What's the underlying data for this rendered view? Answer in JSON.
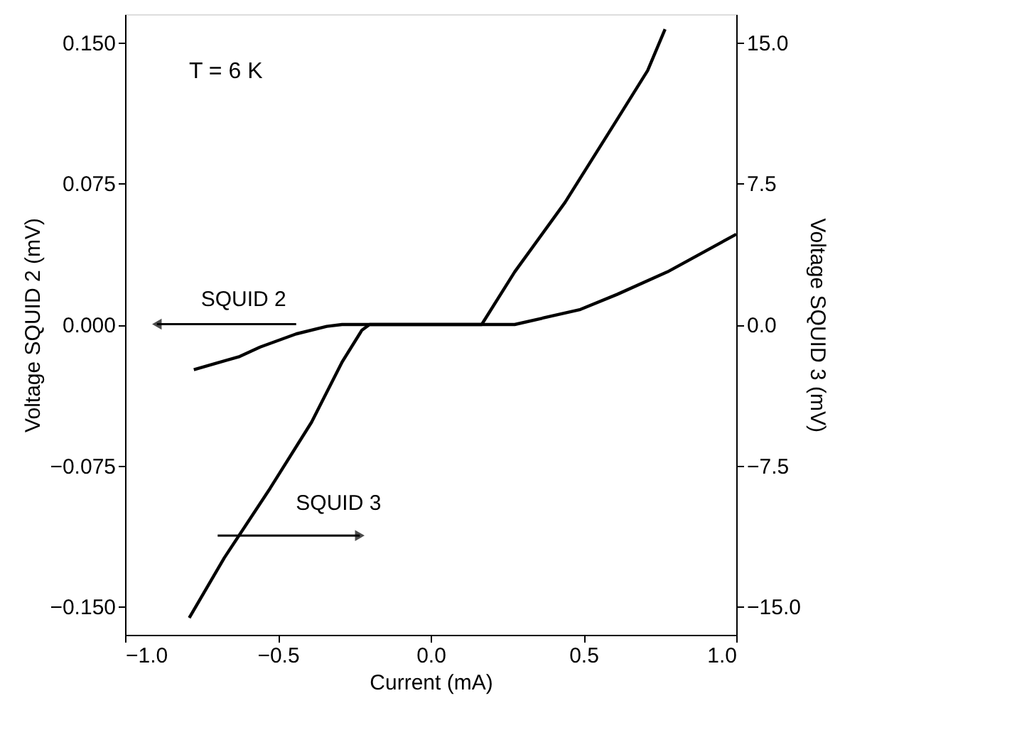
{
  "chart_data": {
    "type": "line",
    "xlabel": "Current (mA)",
    "ylabel": "Voltage SQUID 2 (mV)",
    "y2label": "Voltage SQUID 3 (mV)",
    "annotations": [
      "T = 6 K"
    ],
    "xlim": [
      -1.0,
      1.0
    ],
    "xticks": [
      {
        "value": -1,
        "label": "−1.0"
      },
      {
        "value": -0.5,
        "label": "−0.5"
      },
      {
        "value": 0,
        "label": "0.0"
      },
      {
        "value": 0.5,
        "label": "0.5"
      },
      {
        "value": 1,
        "label": "1.0"
      }
    ],
    "ylim": [
      -0.165,
      0.165
    ],
    "yticks": [
      {
        "value": -0.15,
        "label": "−0.150"
      },
      {
        "value": -0.075,
        "label": "−0.075"
      },
      {
        "value": 0,
        "label": "0.000"
      },
      {
        "value": 0.075,
        "label": "0.075"
      },
      {
        "value": 0.15,
        "label": "0.150"
      }
    ],
    "y2lim": [
      -16.5,
      16.5
    ],
    "y2ticks": [
      {
        "value": -15,
        "label": "−15.0"
      },
      {
        "value": -7.5,
        "label": "−7.5"
      },
      {
        "value": 0,
        "label": "0.0"
      },
      {
        "value": 7.5,
        "label": "7.5"
      },
      {
        "value": 15,
        "label": "15.0"
      }
    ],
    "line_style": "solid",
    "series": [
      {
        "name": "SQUID 2",
        "color": "#000000",
        "axis": "y",
        "x": [
          -0.775,
          -0.625,
          -0.558,
          -0.44,
          -0.34,
          -0.29,
          0.275,
          0.49,
          0.61,
          0.775,
          1.0
        ],
        "values": [
          -0.024,
          -0.017,
          -0.012,
          -0.005,
          -0.001,
          0,
          0,
          0.008,
          0.016,
          0.028,
          0.048
        ]
      },
      {
        "name": "SQUID 3",
        "color": "#000000",
        "axis": "y2",
        "x": [
          -0.79,
          -0.675,
          -0.525,
          -0.39,
          -0.29,
          -0.225,
          -0.2,
          0.167,
          0.275,
          0.44,
          0.61,
          0.71,
          0.767
        ],
        "values": [
          -15.6,
          -12.4,
          -8.7,
          -5.2,
          -2.0,
          -0.3,
          0,
          0,
          2.8,
          6.5,
          10.9,
          13.5,
          15.7
        ]
      }
    ]
  }
}
